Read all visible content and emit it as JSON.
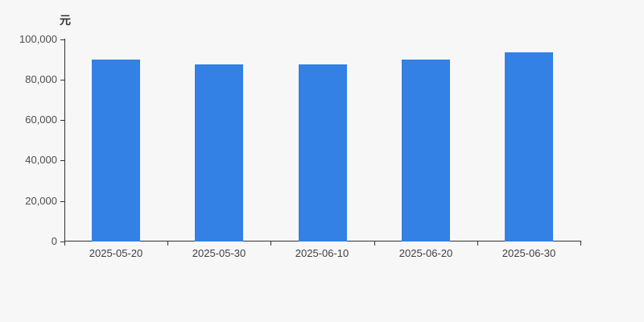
{
  "page": {
    "background_color": "#f7f7f7"
  },
  "chart_data": {
    "type": "bar",
    "title": "",
    "unit_label": "元",
    "categories": [
      "2025-05-20",
      "2025-05-30",
      "2025-06-10",
      "2025-06-20",
      "2025-06-30"
    ],
    "series": [
      {
        "name": "",
        "values": [
          89800,
          87400,
          87400,
          89800,
          93400
        ]
      }
    ],
    "ylim": [
      0,
      100000
    ],
    "y_ticks": [
      0,
      20000,
      40000,
      60000,
      80000,
      100000
    ],
    "y_tick_labels": [
      "0",
      "20,000",
      "40,000",
      "60,000",
      "80,000",
      "100,000"
    ],
    "xlabel": "",
    "ylabel": "元",
    "grid": false,
    "legend": "none",
    "bar_color": "#3381e4",
    "axis_color": "#333333",
    "y_label_color": "#4d4d4d",
    "x_label_color": "#404040"
  }
}
